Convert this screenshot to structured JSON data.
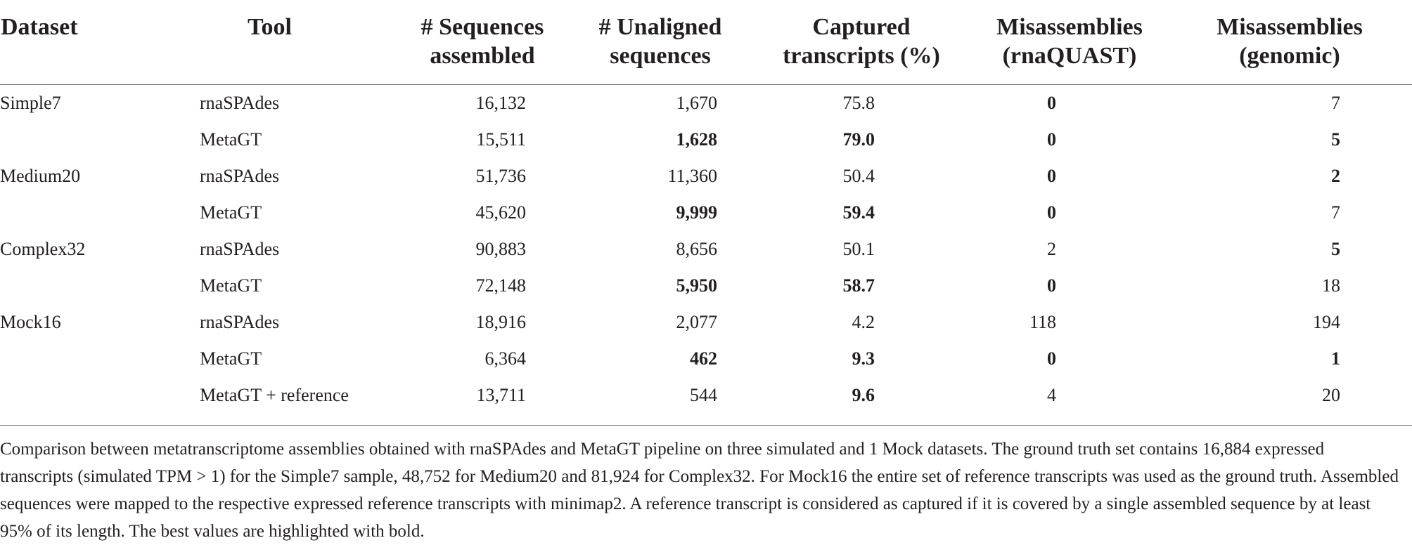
{
  "table": {
    "headers": [
      "Dataset",
      "Tool",
      "# Sequences assembled",
      "# Unaligned sequences",
      "Captured transcripts (%)",
      "Misassemblies (rnaQUAST)",
      "Misassemblies (genomic)"
    ],
    "rows": [
      {
        "dataset": "Simple7",
        "tool": "rnaSPAdes",
        "assembled": "16,132",
        "unaligned": "1,670",
        "captured": "75.8",
        "mis_rnaquast": "0",
        "mis_genomic": "7"
      },
      {
        "dataset": "",
        "tool": "MetaGT",
        "assembled": "15,511",
        "unaligned": "1,628",
        "captured": "79.0",
        "mis_rnaquast": "0",
        "mis_genomic": "5"
      },
      {
        "dataset": "Medium20",
        "tool": "rnaSPAdes",
        "assembled": "51,736",
        "unaligned": "11,360",
        "captured": "50.4",
        "mis_rnaquast": "0",
        "mis_genomic": "2"
      },
      {
        "dataset": "",
        "tool": "MetaGT",
        "assembled": "45,620",
        "unaligned": "9,999",
        "captured": "59.4",
        "mis_rnaquast": "0",
        "mis_genomic": "7"
      },
      {
        "dataset": "Complex32",
        "tool": "rnaSPAdes",
        "assembled": "90,883",
        "unaligned": "8,656",
        "captured": "50.1",
        "mis_rnaquast": "2",
        "mis_genomic": "5"
      },
      {
        "dataset": "",
        "tool": "MetaGT",
        "assembled": "72,148",
        "unaligned": "5,950",
        "captured": "58.7",
        "mis_rnaquast": "0",
        "mis_genomic": "18"
      },
      {
        "dataset": "Mock16",
        "tool": "rnaSPAdes",
        "assembled": "18,916",
        "unaligned": "2,077",
        "captured": "4.2",
        "mis_rnaquast": "118",
        "mis_genomic": "194"
      },
      {
        "dataset": "",
        "tool": "MetaGT",
        "assembled": "6,364",
        "unaligned": "462",
        "captured": "9.3",
        "mis_rnaquast": "0",
        "mis_genomic": "1"
      },
      {
        "dataset": "",
        "tool": "MetaGT + reference",
        "assembled": "13,711",
        "unaligned": "544",
        "captured": "9.6",
        "mis_rnaquast": "4",
        "mis_genomic": "20"
      }
    ],
    "bold_cells": [
      {
        "row": 0,
        "col": "mis_rnaquast"
      },
      {
        "row": 1,
        "col": "unaligned"
      },
      {
        "row": 1,
        "col": "captured"
      },
      {
        "row": 1,
        "col": "mis_rnaquast"
      },
      {
        "row": 1,
        "col": "mis_genomic"
      },
      {
        "row": 2,
        "col": "mis_rnaquast"
      },
      {
        "row": 2,
        "col": "mis_genomic"
      },
      {
        "row": 3,
        "col": "unaligned"
      },
      {
        "row": 3,
        "col": "captured"
      },
      {
        "row": 3,
        "col": "mis_rnaquast"
      },
      {
        "row": 4,
        "col": "mis_genomic"
      },
      {
        "row": 5,
        "col": "unaligned"
      },
      {
        "row": 5,
        "col": "captured"
      },
      {
        "row": 5,
        "col": "mis_rnaquast"
      },
      {
        "row": 7,
        "col": "unaligned"
      },
      {
        "row": 7,
        "col": "captured"
      },
      {
        "row": 7,
        "col": "mis_rnaquast"
      },
      {
        "row": 7,
        "col": "mis_genomic"
      },
      {
        "row": 8,
        "col": "captured"
      }
    ]
  },
  "caption": "Comparison between metatranscriptome assemblies obtained with rnaSPAdes and MetaGT pipeline on three simulated and 1 Mock datasets. The ground truth set contains 16,884 expressed transcripts (simulated TPM > 1) for the Simple7 sample, 48,752 for Medium20 and 81,924 for Complex32. For Mock16 the entire set of reference transcripts was used as the ground truth. Assembled sequences were mapped to the respective expressed reference transcripts with minimap2. A reference transcript is considered as captured if it is covered by a single assembled sequence by at least 95% of its length. The best values are highlighted with bold."
}
